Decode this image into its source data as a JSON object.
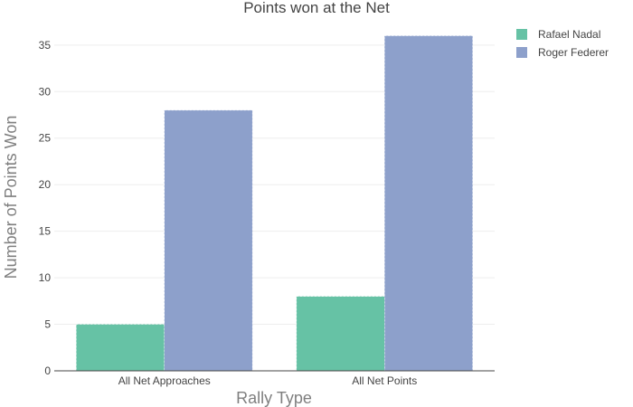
{
  "chart_data": {
    "type": "bar",
    "title": "Points won at the Net",
    "xlabel": "Rally Type",
    "ylabel": "Number of Points Won",
    "categories": [
      "All Net Approaches",
      "All Net Points"
    ],
    "series": [
      {
        "name": "Rafael Nadal",
        "color": "#66c2a5",
        "values": [
          5,
          8
        ]
      },
      {
        "name": "Roger Federer",
        "color": "#8da0cb",
        "values": [
          28,
          36
        ]
      }
    ],
    "ylim": [
      0,
      37.9
    ],
    "yticks": [
      0,
      5,
      10,
      15,
      20,
      25,
      30,
      35
    ],
    "grid": true,
    "legend_position": "top-right"
  }
}
